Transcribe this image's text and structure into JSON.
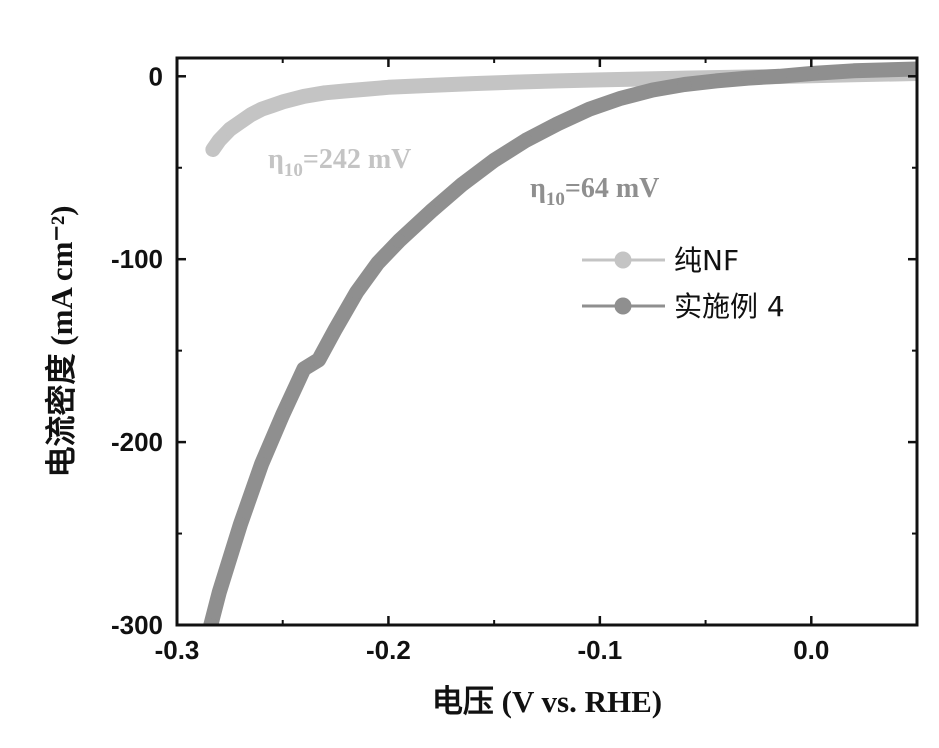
{
  "chart_data": {
    "type": "line",
    "title": "",
    "xlabel": "电压 (V vs. RHE)",
    "ylabel": "电流密度 (mA cm⁻²)",
    "xlim": [
      -0.3,
      0.05
    ],
    "ylim": [
      -300,
      10
    ],
    "xticks": [
      -0.3,
      -0.2,
      -0.1,
      0.0
    ],
    "xtick_labels": [
      "-0.3",
      "-0.2",
      "-0.1",
      "0.0"
    ],
    "yticks": [
      0,
      -100,
      -200,
      -300
    ],
    "ytick_labels": [
      "0",
      "-100",
      "-200",
      "-300"
    ],
    "grid": false,
    "legend_position": "right-middle",
    "series": [
      {
        "name": "纯NF",
        "color": "#c4c4c4",
        "x": [
          -0.283,
          -0.28,
          -0.275,
          -0.27,
          -0.265,
          -0.26,
          -0.255,
          -0.25,
          -0.24,
          -0.23,
          -0.22,
          -0.21,
          -0.2,
          -0.18,
          -0.16,
          -0.14,
          -0.12,
          -0.1,
          -0.08,
          -0.06,
          -0.04,
          -0.02,
          0.0,
          0.02,
          0.05
        ],
        "y": [
          -40,
          -35,
          -29,
          -25,
          -21,
          -18,
          -16,
          -14,
          -11,
          -9,
          -8,
          -7,
          -6,
          -5,
          -4,
          -3.2,
          -2.5,
          -2,
          -1.5,
          -1,
          -0.6,
          -0.2,
          0.3,
          0.8,
          1.5
        ]
      },
      {
        "name": "实施例 4",
        "color": "#8f8f8f",
        "x": [
          -0.284,
          -0.28,
          -0.27,
          -0.26,
          -0.25,
          -0.24,
          -0.233,
          -0.225,
          -0.215,
          -0.205,
          -0.195,
          -0.18,
          -0.165,
          -0.15,
          -0.135,
          -0.12,
          -0.105,
          -0.09,
          -0.075,
          -0.06,
          -0.045,
          -0.03,
          -0.015,
          0.0,
          0.02,
          0.05
        ],
        "y": [
          -300,
          -282,
          -245,
          -212,
          -185,
          -160,
          -155,
          -138,
          -118,
          -102,
          -90,
          -74,
          -59,
          -46,
          -35,
          -26,
          -18,
          -12,
          -7.5,
          -4.5,
          -2.5,
          -1,
          0,
          1.5,
          3,
          4
        ]
      }
    ],
    "annotations": [
      {
        "prefix": "η",
        "subscript": "10",
        "text": "=242 mV",
        "color": "#c4c4c4"
      },
      {
        "prefix": "η",
        "subscript": "10",
        "text": "=64 mV",
        "color": "#8f8f8f"
      }
    ]
  }
}
